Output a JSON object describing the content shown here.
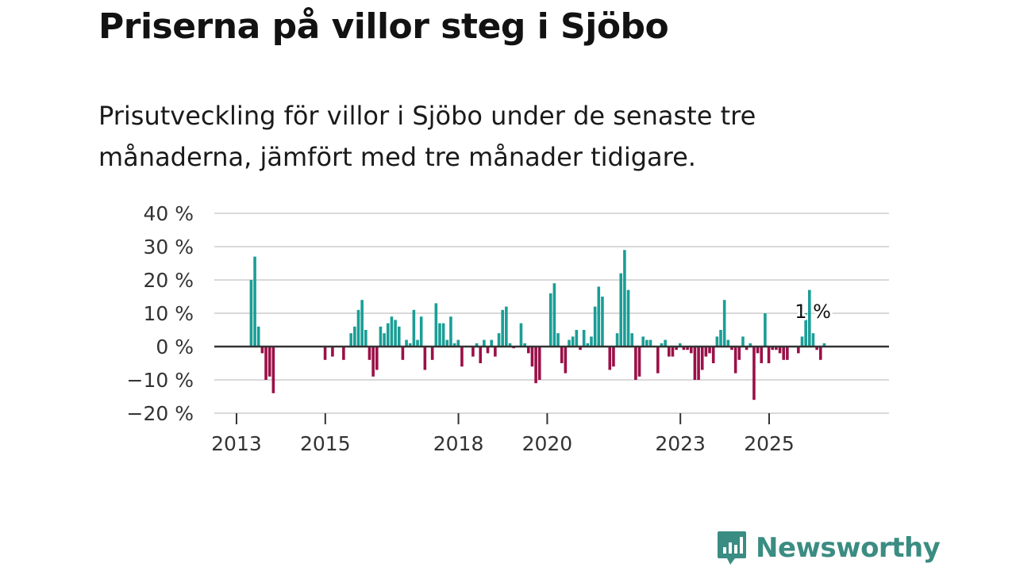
{
  "title": "Priserna på villor steg i Sjöbo",
  "subtitle": "Prisutveckling för villor i Sjöbo under de senaste tre månaderna, jämfört med tre månader tidigare.",
  "brand": "Newsworthy",
  "colors": {
    "positive": "#1a9e96",
    "negative": "#9b1048",
    "axis": "#333333",
    "grid": "#d9d9d9",
    "text": "#333333",
    "brand": "#3b8c82"
  },
  "chart_data": {
    "type": "bar",
    "title": "Priserna på villor steg i Sjöbo",
    "ylabel": "",
    "xlabel": "",
    "ylim": [
      -20,
      40
    ],
    "yticks": [
      40,
      30,
      20,
      10,
      0,
      -10,
      -20
    ],
    "ytick_labels": [
      "40 %",
      "30 %",
      "20 %",
      "10 %",
      "0 %",
      "−10 %",
      "−20 %"
    ],
    "xlim": [
      2012.5,
      2027.7
    ],
    "xticks": [
      2013,
      2015,
      2018,
      2020,
      2023,
      2025
    ],
    "xtick_labels": [
      "2013",
      "2015",
      "2018",
      "2020",
      "2023",
      "2025"
    ],
    "start": 2013.33,
    "step": 0.0833,
    "values": [
      20,
      27,
      6,
      -2,
      -10,
      -9,
      -14,
      null,
      null,
      null,
      null,
      null,
      null,
      null,
      null,
      null,
      null,
      null,
      null,
      null,
      -4,
      null,
      -3,
      null,
      null,
      -4,
      null,
      4,
      6,
      11,
      14,
      5,
      -4,
      -9,
      -7,
      6,
      4,
      7,
      9,
      8,
      6,
      -4,
      2,
      1,
      11,
      2,
      9,
      -7,
      null,
      -4,
      13,
      7,
      7,
      2,
      9,
      1,
      2,
      -6,
      null,
      null,
      -3,
      1,
      -5,
      2,
      -2,
      2,
      -3,
      4,
      11,
      12,
      1,
      -0.5,
      null,
      7,
      1,
      -2,
      -6,
      -11,
      -10,
      null,
      null,
      16,
      19,
      4,
      -5,
      -8,
      2,
      3,
      5,
      -1,
      5,
      1,
      3,
      12,
      18,
      15,
      null,
      -7,
      -6,
      4,
      22,
      29,
      17,
      4,
      -10,
      -9,
      3,
      2,
      2,
      null,
      -8,
      1,
      2,
      -3,
      -3,
      -1,
      1,
      -1,
      -1,
      -2,
      -10,
      -10,
      -7,
      -3,
      -2,
      -5,
      3,
      5,
      14,
      2,
      -1,
      -8,
      -4,
      3,
      -1,
      1,
      -16,
      -2,
      -5,
      10,
      -5,
      -1,
      -1,
      -2,
      -4,
      -4,
      null,
      null,
      -2,
      3,
      10,
      17,
      4,
      -1,
      -4,
      1
    ],
    "annotation": {
      "text": "1 %",
      "x": 2025.95,
      "y": 1
    }
  }
}
